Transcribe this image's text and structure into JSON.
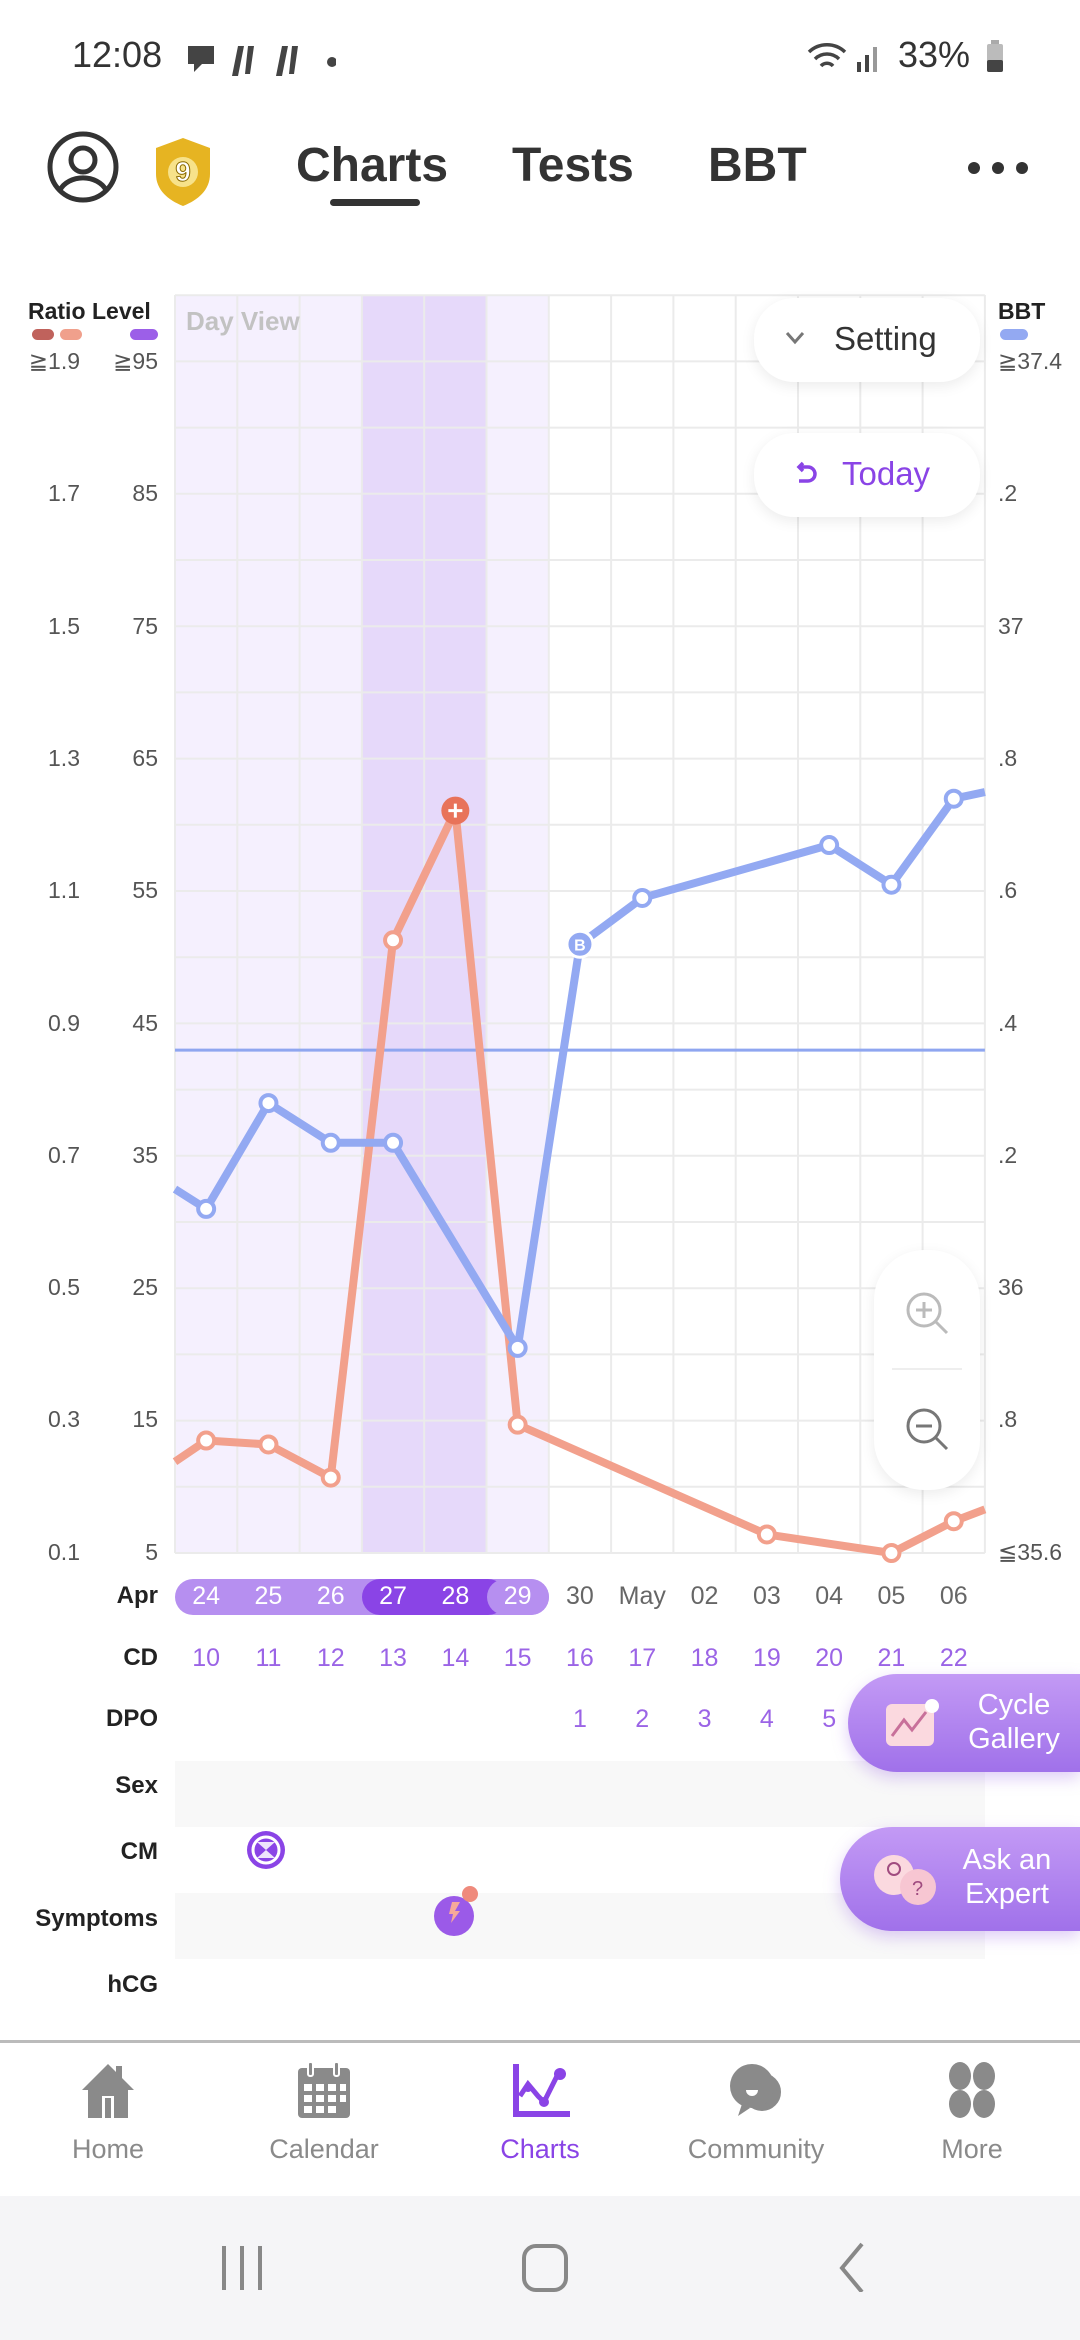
{
  "status_bar": {
    "time": "12:08",
    "battery": "33%"
  },
  "header": {
    "badge_level": "9",
    "tabs": [
      "Charts",
      "Tests",
      "BBT"
    ],
    "active_tab": "Charts"
  },
  "chart": {
    "view_label": "Day View",
    "setting_label": "Setting",
    "today_label": "Today",
    "legend": {
      "ratio": "Ratio",
      "level": "Level",
      "bbt": "BBT"
    },
    "ratio_ticks": [
      "≧1.9",
      "1.7",
      "1.5",
      "1.3",
      "1.1",
      "0.9",
      "0.7",
      "0.5",
      "0.3",
      "0.1"
    ],
    "level_ticks": [
      "≧95",
      "85",
      "75",
      "65",
      "55",
      "45",
      "35",
      "25",
      "15",
      "5"
    ],
    "bbt_ticks": [
      "≧37.4",
      ".2",
      "37",
      ".8",
      ".6",
      ".4",
      ".2",
      "36",
      ".8",
      "≦35.6"
    ],
    "colors": {
      "level": "#f2a08c",
      "level_peak": "#e8735a",
      "bbt": "#93a9f2",
      "ratio_dark": "#c0625c",
      "ratio_light": "#f0a08c",
      "level_legend": "#9c5fe8",
      "accent": "#8a44e6"
    }
  },
  "chart_data": {
    "type": "line",
    "x": [
      "Apr 24",
      "Apr 25",
      "Apr 26",
      "Apr 27",
      "Apr 28",
      "Apr 29",
      "Apr 30",
      "May 01",
      "May 02",
      "May 03",
      "May 04",
      "May 05",
      "May 06"
    ],
    "level_range": [
      5,
      95
    ],
    "bbt_range": [
      35.6,
      37.4
    ],
    "series": [
      {
        "name": "Level",
        "axis": "level",
        "edge_left": 11.9,
        "edge_right": 8.3,
        "values": [
          13.5,
          13.2,
          10.7,
          51.3,
          61.1,
          14.7,
          null,
          null,
          null,
          6.4,
          null,
          5,
          7.4
        ],
        "peak_index": 4
      },
      {
        "name": "BBT",
        "axis": "bbt",
        "edge_left": 36.15,
        "edge_right": 36.75,
        "values": [
          36.12,
          36.28,
          36.22,
          36.22,
          null,
          35.91,
          36.52,
          36.59,
          null,
          null,
          36.67,
          36.61,
          36.74
        ],
        "marked_index": 6,
        "marker_text": "B"
      }
    ],
    "coverline": 36.36
  },
  "timeline": {
    "month_label": "Apr",
    "dates": [
      "24",
      "25",
      "26",
      "27",
      "28",
      "29",
      "30",
      "May",
      "02",
      "03",
      "04",
      "05",
      "06"
    ],
    "fertile_range": [
      0,
      5
    ],
    "peak_range": [
      3,
      4
    ],
    "cd_label": "CD",
    "cd": [
      "10",
      "11",
      "12",
      "13",
      "14",
      "15",
      "16",
      "17",
      "18",
      "19",
      "20",
      "21",
      "22"
    ],
    "dpo_label": "DPO",
    "dpo": [
      "",
      "",
      "",
      "",
      "",
      "",
      "1",
      "2",
      "3",
      "4",
      "5",
      "",
      ""
    ],
    "sex_label": "Sex",
    "cm_label": "CM",
    "symptoms_label": "Symptoms",
    "hcg_label": "hCG"
  },
  "floating": {
    "cycle_gallery": [
      "Cycle",
      "Gallery"
    ],
    "ask_expert": [
      "Ask an",
      "Expert"
    ]
  },
  "bottom_nav": [
    {
      "label": "Home"
    },
    {
      "label": "Calendar"
    },
    {
      "label": "Charts",
      "active": true
    },
    {
      "label": "Community"
    },
    {
      "label": "More"
    }
  ]
}
